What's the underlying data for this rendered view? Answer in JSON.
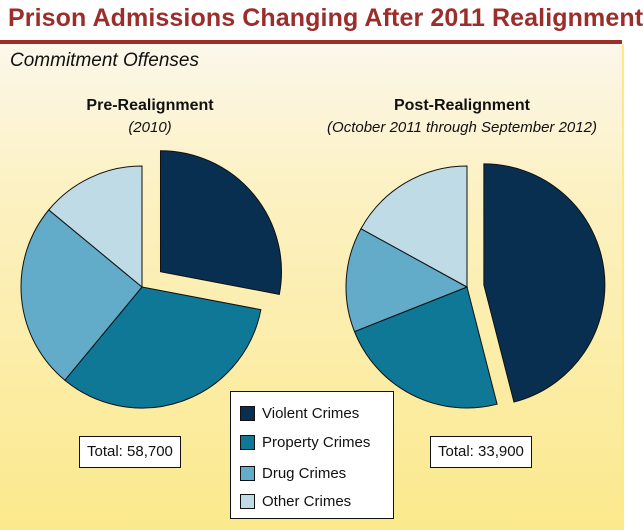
{
  "page": {
    "title": "Prison Admissions Changing After 2011 Realignment",
    "subtitle": "Commitment Offenses"
  },
  "colors": {
    "title": "#9b2d2b",
    "violent": "#082f4f",
    "property": "#0e7896",
    "drug": "#62abc9",
    "other": "#bfdbe6"
  },
  "legend": [
    {
      "label": "Violent Crimes",
      "color": "#082f4f"
    },
    {
      "label": "Property Crimes",
      "color": "#0e7896"
    },
    {
      "label": "Drug Crimes",
      "color": "#62abc9"
    },
    {
      "label": "Other Crimes",
      "color": "#bfdbe6"
    }
  ],
  "chart_data": [
    {
      "type": "pie",
      "title": "Pre-Realignment",
      "subtitle": "(2010)",
      "total_label": "Total: 58,700",
      "categories": [
        "Violent Crimes",
        "Property Crimes",
        "Drug Crimes",
        "Other Crimes"
      ],
      "values": [
        28,
        33,
        25,
        14
      ],
      "unit": "percent (estimated)",
      "exploded": "Violent Crimes"
    },
    {
      "type": "pie",
      "title": "Post-Realignment",
      "subtitle": "(October 2011 through September 2012)",
      "total_label": "Total: 33,900",
      "categories": [
        "Violent Crimes",
        "Property Crimes",
        "Drug Crimes",
        "Other Crimes"
      ],
      "values": [
        46,
        23,
        14,
        17
      ],
      "unit": "percent (estimated)",
      "exploded": "Violent Crimes"
    }
  ]
}
